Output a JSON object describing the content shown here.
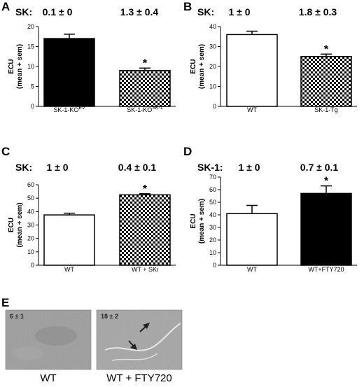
{
  "chart_data": [
    {
      "type": "bar",
      "panel": "A",
      "header_prefix": "SK:",
      "header_values": [
        "0.1 ± 0",
        "1.3 ± 0.4"
      ],
      "ylabel": "ECU",
      "ylabel2": "(mean + sem)",
      "ylim": [
        0,
        20
      ],
      "yticks": [
        0,
        5,
        10,
        15,
        20
      ],
      "categories": [
        {
          "label": "SK-1-KO",
          "sup": "EV"
        },
        {
          "label": "SK-1-KO",
          "sup": "SK-1"
        }
      ],
      "values": [
        17,
        9
      ],
      "errors": [
        1.1,
        0.6
      ],
      "fills": [
        "black",
        "checker"
      ],
      "significant": [
        false,
        true
      ],
      "star": "*"
    },
    {
      "type": "bar",
      "panel": "B",
      "header_prefix": "SK:",
      "header_values": [
        "1 ± 0",
        "1.8 ± 0.3"
      ],
      "ylabel": "ECU",
      "ylabel2": "(mean + sem)",
      "ylim": [
        0,
        40
      ],
      "yticks": [
        0,
        10,
        20,
        30,
        40
      ],
      "categories": [
        {
          "label": "WT",
          "sup": ""
        },
        {
          "label": "SK-1-Tg",
          "sup": ""
        }
      ],
      "values": [
        36,
        25
      ],
      "errors": [
        1.7,
        1.2
      ],
      "fills": [
        "white",
        "checker"
      ],
      "significant": [
        false,
        true
      ],
      "star": "*"
    },
    {
      "type": "bar",
      "panel": "C",
      "header_prefix": "SK:",
      "header_values": [
        "1 ± 0",
        "0.4 ± 0.1"
      ],
      "ylabel": "ECU",
      "ylabel2": "(mean + sem)",
      "ylim": [
        0,
        60
      ],
      "yticks": [
        0,
        10,
        20,
        30,
        40,
        50,
        60
      ],
      "categories": [
        {
          "label": "WT",
          "sup": ""
        },
        {
          "label": "WT + SKi",
          "sup": ""
        }
      ],
      "values": [
        37.5,
        52.5
      ],
      "errors": [
        1.3,
        0.8
      ],
      "fills": [
        "white",
        "checker"
      ],
      "significant": [
        false,
        true
      ],
      "star": "*"
    },
    {
      "type": "bar",
      "panel": "D",
      "header_prefix": "SK-1:",
      "header_values": [
        "1 ± 0",
        "0.7 ± 0.1"
      ],
      "ylabel": "ECU",
      "ylabel2": "(mean + sem)",
      "ylim": [
        0,
        70
      ],
      "yticks": [
        0,
        10,
        20,
        30,
        40,
        50,
        60,
        70
      ],
      "categories": [
        {
          "label": "WT",
          "sup": ""
        },
        {
          "label": "WT+FTY720",
          "sup": ""
        }
      ],
      "values": [
        41,
        57
      ],
      "errors": [
        6.5,
        6
      ],
      "fills": [
        "white",
        "black"
      ],
      "significant": [
        false,
        true
      ],
      "star": "*"
    }
  ],
  "panel_e": {
    "label": "E",
    "images": [
      {
        "overlay": "6 ± 1",
        "caption": "WT"
      },
      {
        "overlay": "18 ± 2",
        "caption": "WT  + FTY720"
      }
    ]
  }
}
